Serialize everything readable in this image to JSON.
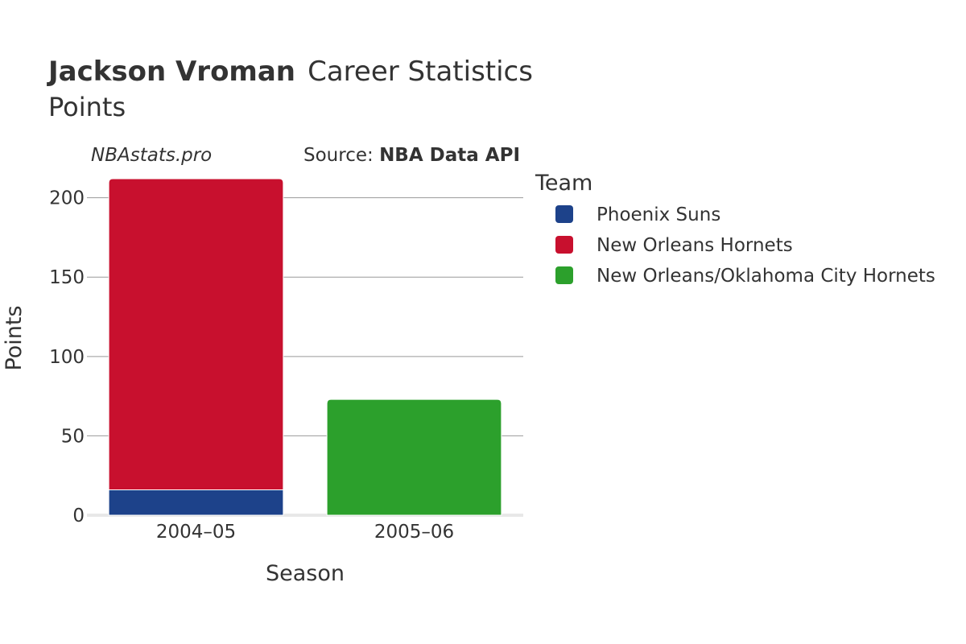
{
  "header": {
    "player_name": "Jackson Vroman",
    "title_suffix": "Career Statistics",
    "subtitle": "Points",
    "credit": "NBAstats.pro",
    "source_label": "Source: ",
    "source_name": "NBA Data API"
  },
  "legend": {
    "title": "Team"
  },
  "chart_data": {
    "type": "bar",
    "stacked": true,
    "categories": [
      "2004–05",
      "2005–06"
    ],
    "series": [
      {
        "name": "Phoenix Suns",
        "color": "#1D428A",
        "values": [
          16,
          0
        ]
      },
      {
        "name": "New Orleans Hornets",
        "color": "#C8102E",
        "values": [
          196,
          0
        ]
      },
      {
        "name": "New Orleans/Oklahoma City Hornets",
        "color": "#2CA02C",
        "values": [
          0,
          73
        ]
      }
    ],
    "xlabel": "Season",
    "ylabel": "Points",
    "ylim": [
      0,
      212
    ],
    "yticks": [
      0,
      50,
      100,
      150,
      200
    ],
    "grid": true,
    "legend_position": "right"
  }
}
